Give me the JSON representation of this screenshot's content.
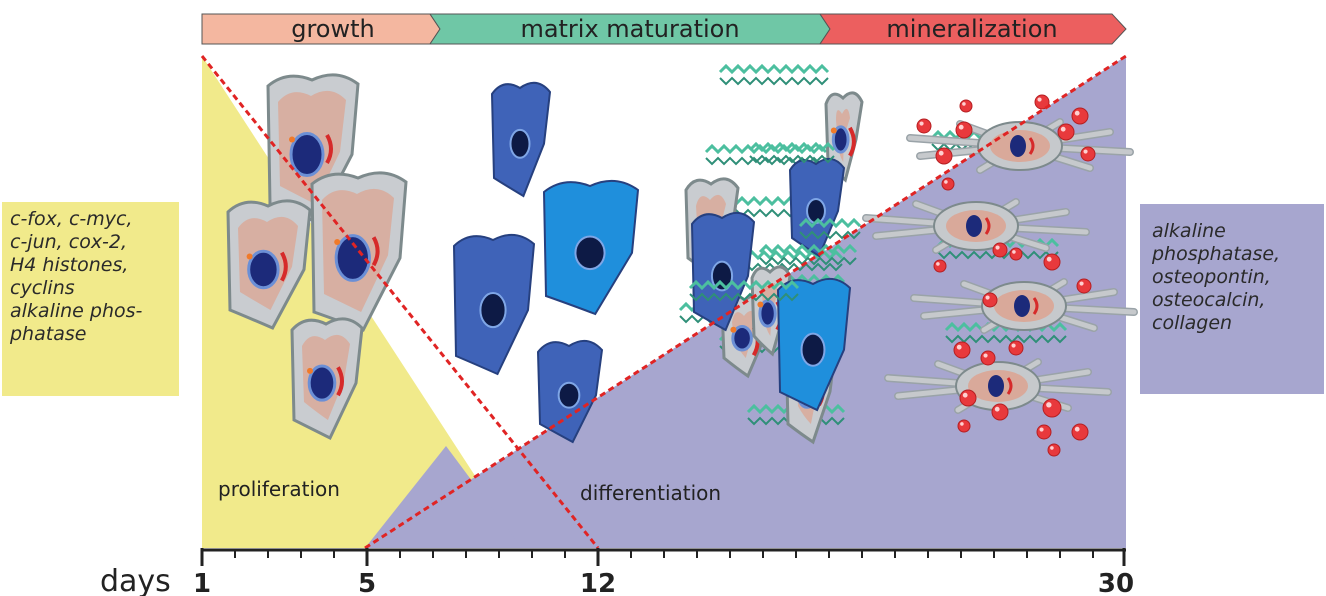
{
  "phases": [
    {
      "label": "growth",
      "color": "#f4b7a0"
    },
    {
      "label": "matrix maturation",
      "color": "#6fc7a6"
    },
    {
      "label": "mineralization",
      "color": "#ec5f5f"
    }
  ],
  "stages": {
    "proliferation": "proliferation",
    "differentiation": "differentiation"
  },
  "left_markers": [
    "c-fox, c-myc,",
    "c-jun, cox-2,",
    "H4 histones,",
    "cyclins",
    "alkaline phos-",
    "phatase"
  ],
  "right_markers": [
    "alkaline",
    "phosphatase,",
    "osteopontin,",
    "osteocalcin,",
    "collagen"
  ],
  "axis": {
    "label": "days",
    "ticks": [
      "1",
      "5",
      "12",
      "30"
    ]
  },
  "colors": {
    "proliferation_region": "#f1ea8b",
    "differentiation_region": "#a7a6cf",
    "dashed_line": "#e02424",
    "proliferating_cell": "#d9a99a",
    "immature_cell": "#3f63b8",
    "maturing_cell": "#1f8fdc",
    "collagen_fiber": "#4cbf9f",
    "mineral_crystal": "#e8393c",
    "osteocyte": "#c6c9cc"
  },
  "icons": [
    "proliferating-cell",
    "osteoblast-cell",
    "collagen-fiber",
    "mineral-crystal",
    "osteocyte-cell"
  ]
}
